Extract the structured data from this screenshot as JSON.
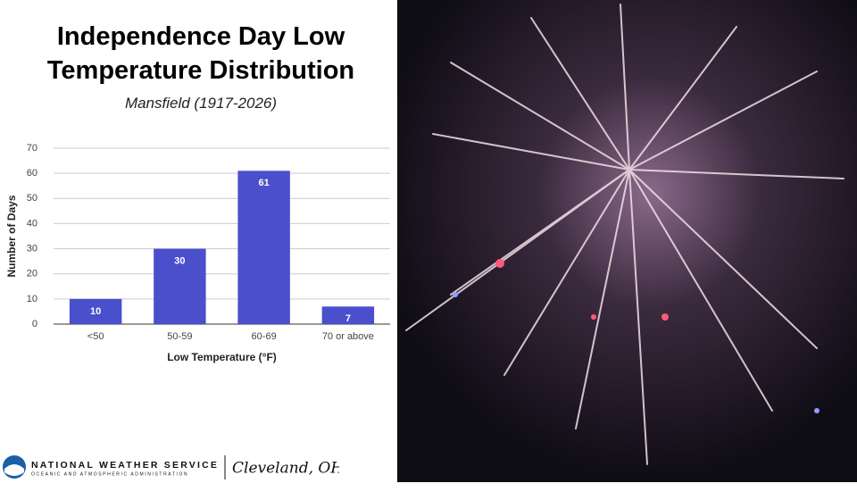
{
  "chart_data": {
    "type": "bar",
    "title": "Independence Day Low Temperature Distribution",
    "subtitle": "Mansfield (1917-2026)",
    "categories": [
      "<50",
      "50-59",
      "60-69",
      "70 or above"
    ],
    "values": [
      10,
      30,
      61,
      7
    ],
    "color": "#4a4fcc",
    "ylim": [
      0,
      70
    ],
    "yticks": [
      0,
      10,
      20,
      30,
      40,
      50,
      60,
      70
    ],
    "ylabel": "Number of Days",
    "xlabel": "Low Temperature (°F)",
    "grid": true
  },
  "footer": {
    "agency": "NATIONAL WEATHER SERVICE",
    "agency_sub": "OCEANIC AND ATMOSPHERIC ADMINISTRATION",
    "office": "Cleveland, OH"
  }
}
